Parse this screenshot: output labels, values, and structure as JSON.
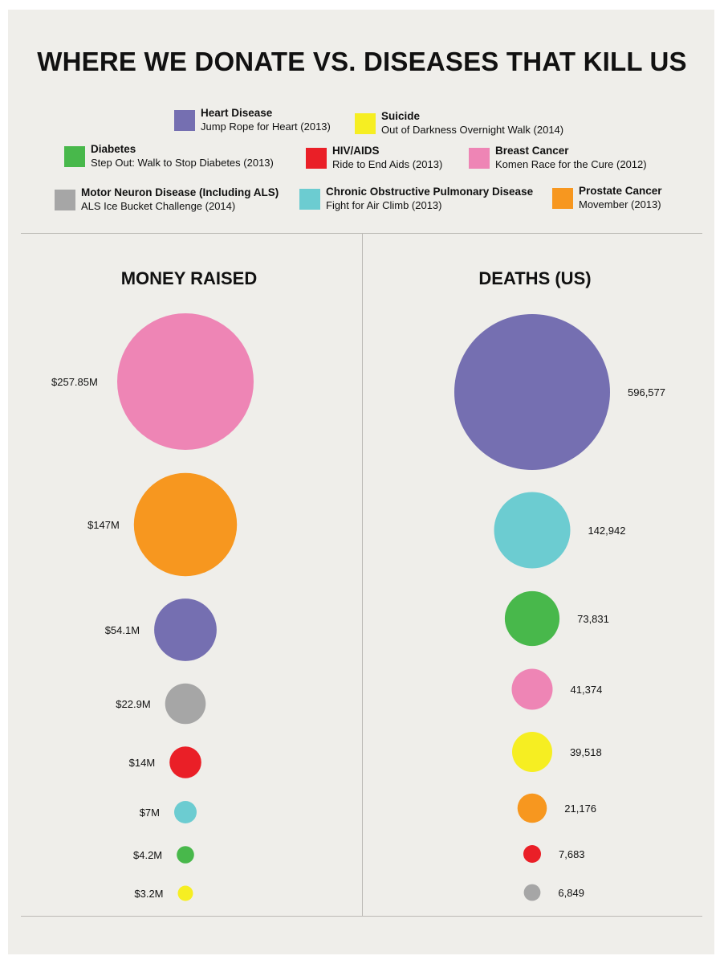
{
  "title": "WHERE WE DONATE VS. DISEASES THAT KILL US",
  "legend": [
    {
      "key": "heart",
      "name": "Heart Disease",
      "event": "Jump Rope for Heart (2013)",
      "color": "#756fb1"
    },
    {
      "key": "suicide",
      "name": "Suicide",
      "event": "Out of Darkness Overnight Walk (2014)",
      "color": "#f6ee22"
    },
    {
      "key": "diabetes",
      "name": "Diabetes",
      "event": "Step Out: Walk to Stop Diabetes (2013)",
      "color": "#48b84b"
    },
    {
      "key": "hiv",
      "name": "HIV/AIDS",
      "event": "Ride to End Aids (2013)",
      "color": "#ea1f27"
    },
    {
      "key": "breast",
      "name": "Breast Cancer",
      "event": "Komen Race for the Cure (2012)",
      "color": "#ee85b5"
    },
    {
      "key": "als",
      "name": "Motor Neuron Disease (Including ALS)",
      "event": "ALS Ice Bucket Challenge (2014)",
      "color": "#a6a6a6"
    },
    {
      "key": "copd",
      "name": "Chronic Obstructive Pulmonary Disease",
      "event": "Fight for Air Climb (2013)",
      "color": "#6cccd1"
    },
    {
      "key": "prostate",
      "name": "Prostate Cancer",
      "event": "Movember (2013)",
      "color": "#f7971f"
    }
  ],
  "chart_data": [
    {
      "type": "bubble",
      "title": "MONEY RAISED",
      "unit": "USD millions",
      "points": [
        {
          "category": "Breast Cancer",
          "value": 257.85,
          "label": "$257.85M",
          "color": "#ee85b5"
        },
        {
          "category": "Prostate Cancer",
          "value": 147,
          "label": "$147M",
          "color": "#f7971f"
        },
        {
          "category": "Heart Disease",
          "value": 54.1,
          "label": "$54.1M",
          "color": "#756fb1"
        },
        {
          "category": "Motor Neuron Disease (Including ALS)",
          "value": 22.9,
          "label": "$22.9M",
          "color": "#a6a6a6"
        },
        {
          "category": "HIV/AIDS",
          "value": 14,
          "label": "$14M",
          "color": "#ea1f27"
        },
        {
          "category": "Chronic Obstructive Pulmonary Disease",
          "value": 7,
          "label": "$7M",
          "color": "#6cccd1"
        },
        {
          "category": "Diabetes",
          "value": 4.2,
          "label": "$4.2M",
          "color": "#48b84b"
        },
        {
          "category": "Suicide",
          "value": 3.2,
          "label": "$3.2M",
          "color": "#f6ee22"
        }
      ]
    },
    {
      "type": "bubble",
      "title": "DEATHS (US)",
      "unit": "deaths",
      "points": [
        {
          "category": "Heart Disease",
          "value": 596577,
          "label": "596,577",
          "color": "#756fb1"
        },
        {
          "category": "Chronic Obstructive Pulmonary Disease",
          "value": 142942,
          "label": "142,942",
          "color": "#6cccd1"
        },
        {
          "category": "Diabetes",
          "value": 73831,
          "label": "73,831",
          "color": "#48b84b"
        },
        {
          "category": "Breast Cancer",
          "value": 41374,
          "label": "41,374",
          "color": "#ee85b5"
        },
        {
          "category": "Suicide",
          "value": 39518,
          "label": "39,518",
          "color": "#f6ee22"
        },
        {
          "category": "Prostate Cancer",
          "value": 21176,
          "label": "21,176",
          "color": "#f7971f"
        },
        {
          "category": "HIV/AIDS",
          "value": 7683,
          "label": "7,683",
          "color": "#ea1f27"
        },
        {
          "category": "Motor Neuron Disease (Including ALS)",
          "value": 6849,
          "label": "6,849",
          "color": "#a6a6a6"
        }
      ]
    }
  ]
}
